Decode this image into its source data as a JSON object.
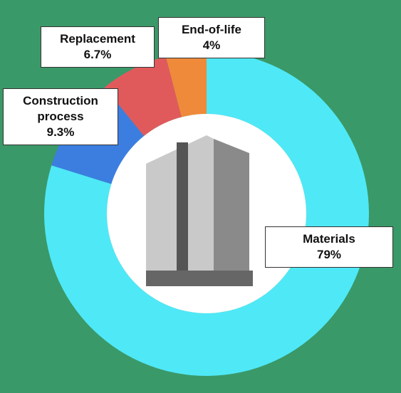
{
  "chart_data": {
    "type": "donut",
    "categories": [
      "Materials",
      "Construction process",
      "Replacement",
      "End-of-life"
    ],
    "values": [
      79,
      9.3,
      6.7,
      4
    ],
    "value_labels": [
      "79%",
      "9.3%",
      "6.7%",
      "4%"
    ],
    "colors": [
      "#4fe8f7",
      "#3b7ee0",
      "#e05a5c",
      "#ee8a3a"
    ]
  }
}
